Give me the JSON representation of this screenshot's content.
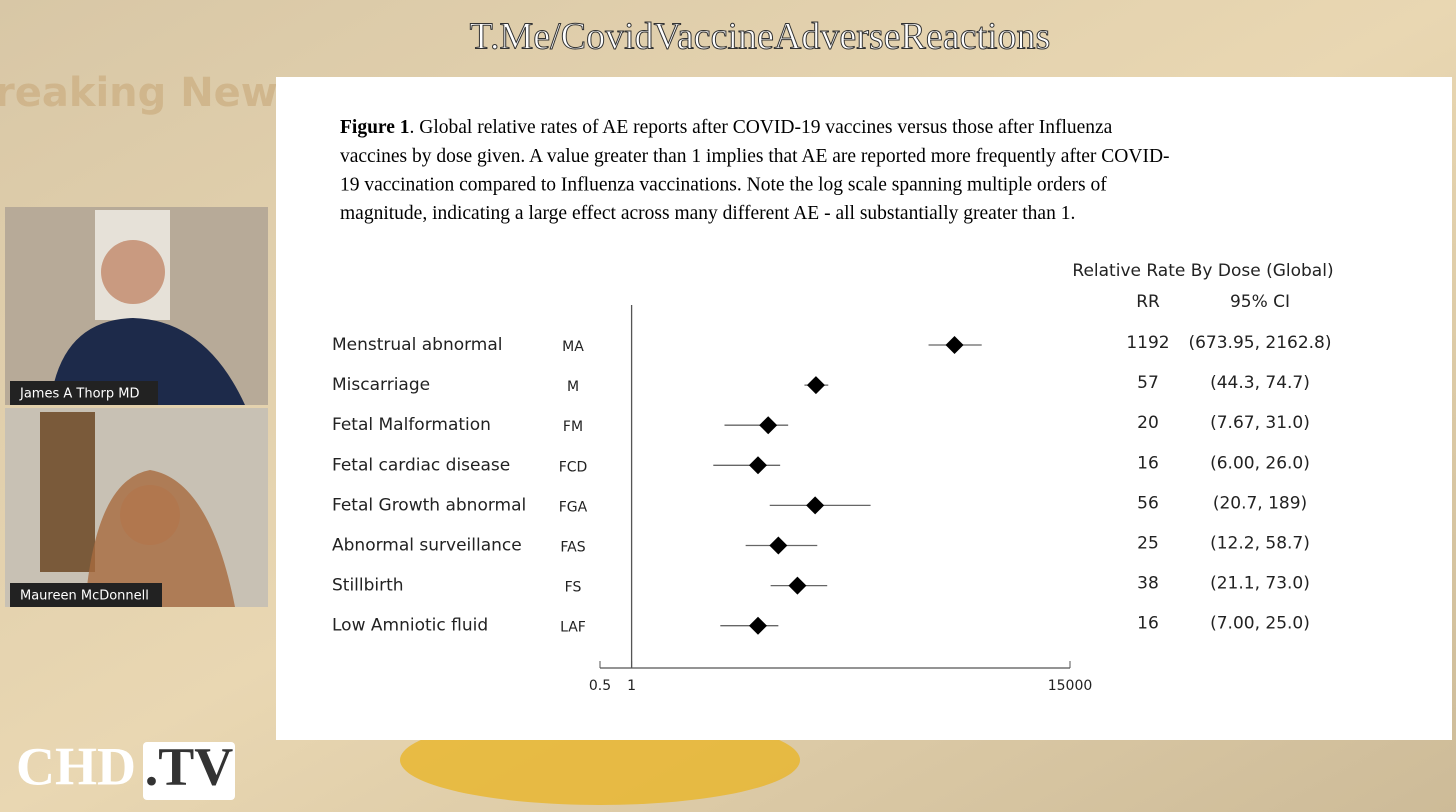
{
  "watermark": "T.Me/CovidVaccineAdverseReactions",
  "background_text": "reaking News",
  "logo": {
    "left": "CHD",
    "right": ".TV"
  },
  "participants": [
    {
      "name": "James A Thorp MD"
    },
    {
      "name": "Maureen McDonnell"
    }
  ],
  "chart_data": {
    "type": "forest",
    "caption_label": "Figure 1",
    "caption_lines": [
      ". Global relative rates of AE reports after COVID-19 vaccines versus those after Influenza",
      "vaccines by dose given. A value greater than 1 implies that AE are reported more frequently after COVID-",
      "19 vaccination compared to Influenza vaccinations. Note the log scale spanning multiple orders of",
      "magnitude, indicating a large effect across many different AE - all substantially greater than 1."
    ],
    "table_title": "Relative Rate By Dose (Global)",
    "columns": [
      "RR",
      "95% CI"
    ],
    "categories": [
      "Menstrual abnormal",
      "Miscarriage",
      "Fetal Malformation",
      "Fetal cardiac disease",
      "Fetal Growth abnormal",
      "Abnormal surveillance",
      "Stillbirth",
      "Low Amniotic fluid"
    ],
    "abbreviations": [
      "MA",
      "M",
      "FM",
      "FCD",
      "FGA",
      "FAS",
      "FS",
      "LAF"
    ],
    "values": [
      1192,
      57,
      20,
      16,
      56,
      25,
      38,
      16
    ],
    "ci_low": [
      673.95,
      44.3,
      7.67,
      6.0,
      20.7,
      12.2,
      21.1,
      7.0
    ],
    "ci_high": [
      2162.8,
      74.7,
      31.0,
      26.0,
      189,
      58.7,
      73.0,
      25.0
    ],
    "ci_labels": [
      "(673.95, 2162.8)",
      "(44.3, 74.7)",
      "(7.67, 31.0)",
      "(6.00, 26.0)",
      "(20.7, 189)",
      "(12.2, 58.7)",
      "(21.1, 73.0)",
      "(7.00, 25.0)"
    ],
    "color": "#000000",
    "log_scale": true,
    "xlim": [
      0.5,
      15000
    ],
    "xticks": [
      0.5,
      1,
      15000
    ]
  }
}
